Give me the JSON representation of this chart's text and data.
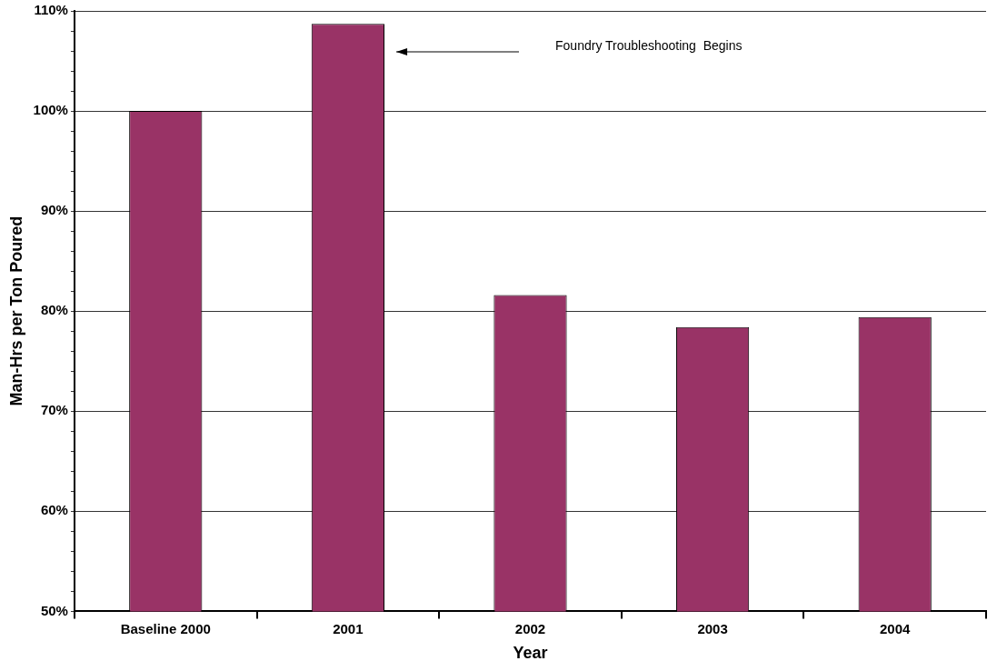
{
  "chart_data": {
    "type": "bar",
    "xlabel": "Year",
    "ylabel": "Man-Hrs per Ton Poured",
    "categories": [
      "Baseline 2000",
      "2001",
      "2002",
      "2003",
      "2004"
    ],
    "values": [
      100,
      108.7,
      81.6,
      78.4,
      79.4
    ],
    "color": "#993366",
    "ylim": [
      50,
      110
    ],
    "yticks": [
      {
        "value": 50,
        "label": "50%"
      },
      {
        "value": 52,
        "label": null
      },
      {
        "value": 54,
        "label": null
      },
      {
        "value": 56,
        "label": null
      },
      {
        "value": 58,
        "label": null
      },
      {
        "value": 60,
        "label": "60%"
      },
      {
        "value": 62,
        "label": null
      },
      {
        "value": 64,
        "label": null
      },
      {
        "value": 66,
        "label": null
      },
      {
        "value": 68,
        "label": null
      },
      {
        "value": 70,
        "label": "70%"
      },
      {
        "value": 72,
        "label": null
      },
      {
        "value": 74,
        "label": null
      },
      {
        "value": 76,
        "label": null
      },
      {
        "value": 78,
        "label": null
      },
      {
        "value": 80,
        "label": "80%"
      },
      {
        "value": 82,
        "label": null
      },
      {
        "value": 84,
        "label": null
      },
      {
        "value": 86,
        "label": null
      },
      {
        "value": 88,
        "label": null
      },
      {
        "value": 90,
        "label": "90%"
      },
      {
        "value": 92,
        "label": null
      },
      {
        "value": 94,
        "label": null
      },
      {
        "value": 96,
        "label": null
      },
      {
        "value": 98,
        "label": null
      },
      {
        "value": 100,
        "label": "100%"
      },
      {
        "value": 102,
        "label": null
      },
      {
        "value": 104,
        "label": null
      },
      {
        "value": 106,
        "label": null
      },
      {
        "value": 108,
        "label": null
      },
      {
        "value": 110,
        "label": "110%"
      }
    ],
    "grid": "y",
    "legend": false,
    "annotations": [
      "Foundry Troubleshooting  Begins"
    ]
  }
}
